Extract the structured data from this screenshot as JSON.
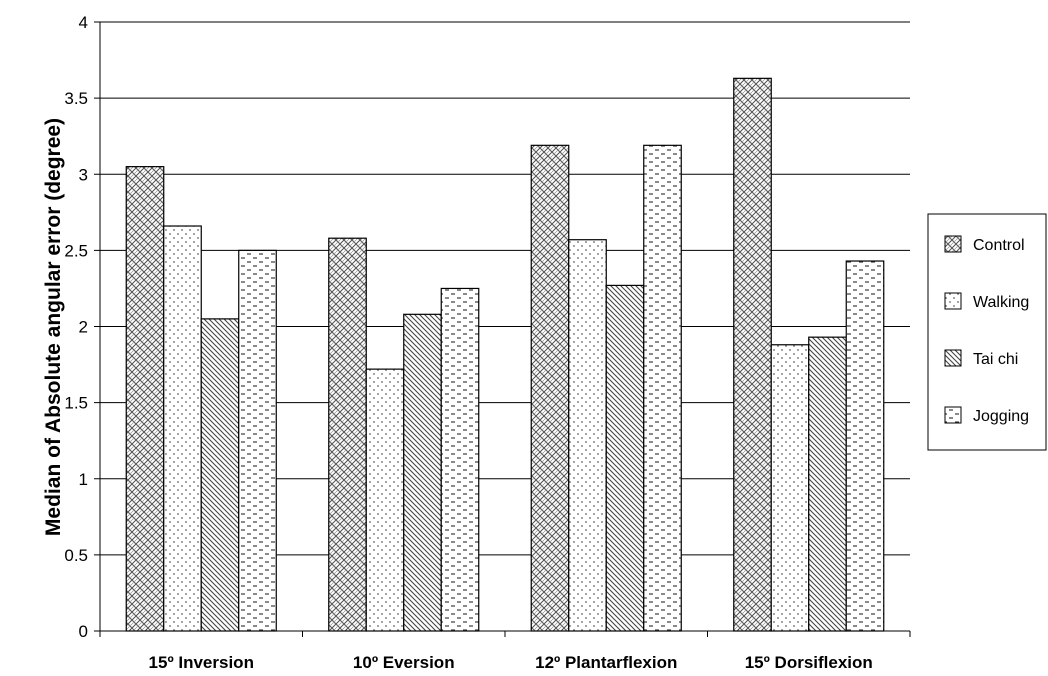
{
  "chart_data": {
    "type": "bar",
    "title": "",
    "xlabel": "",
    "ylabel": "Median of Absolute angular error (degree)",
    "ylim": [
      0,
      4
    ],
    "yticks": [
      "0",
      "0.5",
      "1",
      "1.5",
      "2",
      "2.5",
      "3",
      "3.5",
      "4"
    ],
    "categories": [
      "15º Inversion",
      "10º Eversion",
      "12º Plantarflexion",
      "15º Dorsiflexion"
    ],
    "grid": true,
    "legend_position": "right",
    "series": [
      {
        "name": "Control",
        "values": [
          3.05,
          2.58,
          3.19,
          3.63
        ],
        "pattern": "crosshatch"
      },
      {
        "name": "Walking",
        "values": [
          2.66,
          1.72,
          2.57,
          1.88
        ],
        "pattern": "dots"
      },
      {
        "name": "Tai chi",
        "values": [
          2.05,
          2.08,
          2.27,
          1.93
        ],
        "pattern": "diagonal"
      },
      {
        "name": "Jogging",
        "values": [
          2.5,
          2.25,
          3.19,
          2.43
        ],
        "pattern": "dashes"
      }
    ]
  }
}
